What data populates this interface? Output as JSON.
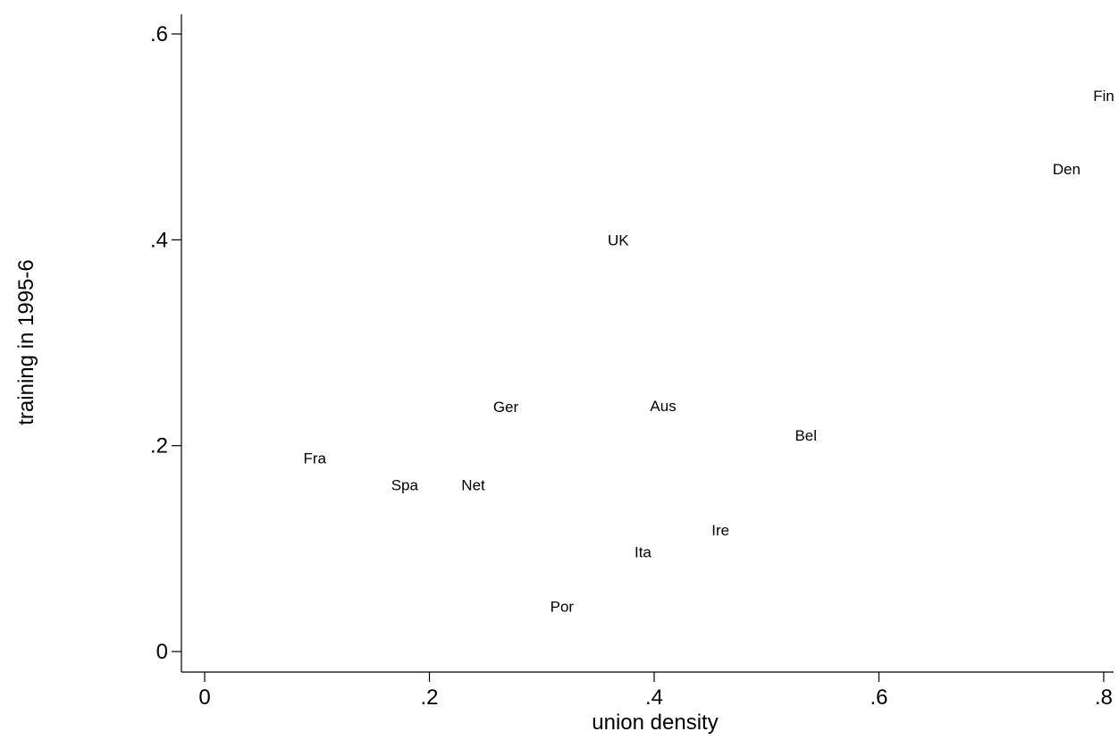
{
  "chart_data": {
    "type": "scatter",
    "xlabel": "union density",
    "ylabel": "training in 1995-6",
    "xlim": [
      0,
      0.8
    ],
    "ylim": [
      0,
      0.6
    ],
    "x_ticks": [
      {
        "value": 0,
        "label": "0"
      },
      {
        "value": 0.2,
        "label": ".2"
      },
      {
        "value": 0.4,
        "label": ".4"
      },
      {
        "value": 0.6,
        "label": ".6"
      },
      {
        "value": 0.8,
        "label": ".8"
      }
    ],
    "y_ticks": [
      {
        "value": 0,
        "label": "0"
      },
      {
        "value": 0.2,
        "label": ".2"
      },
      {
        "value": 0.4,
        "label": ".4"
      },
      {
        "value": 0.6,
        "label": ".6"
      }
    ],
    "grid": false,
    "marker": "label-only",
    "points": [
      {
        "label": "Fin",
        "x": 0.8,
        "y": 0.54
      },
      {
        "label": "Den",
        "x": 0.767,
        "y": 0.469
      },
      {
        "label": "UK",
        "x": 0.368,
        "y": 0.4
      },
      {
        "label": "Ger",
        "x": 0.268,
        "y": 0.238
      },
      {
        "label": "Aus",
        "x": 0.408,
        "y": 0.239
      },
      {
        "label": "Bel",
        "x": 0.535,
        "y": 0.21
      },
      {
        "label": "Fra",
        "x": 0.098,
        "y": 0.188
      },
      {
        "label": "Spa",
        "x": 0.178,
        "y": 0.162
      },
      {
        "label": "Net",
        "x": 0.239,
        "y": 0.162
      },
      {
        "label": "Ire",
        "x": 0.459,
        "y": 0.118
      },
      {
        "label": "Ita",
        "x": 0.39,
        "y": 0.097
      },
      {
        "label": "Por",
        "x": 0.318,
        "y": 0.044
      }
    ]
  }
}
